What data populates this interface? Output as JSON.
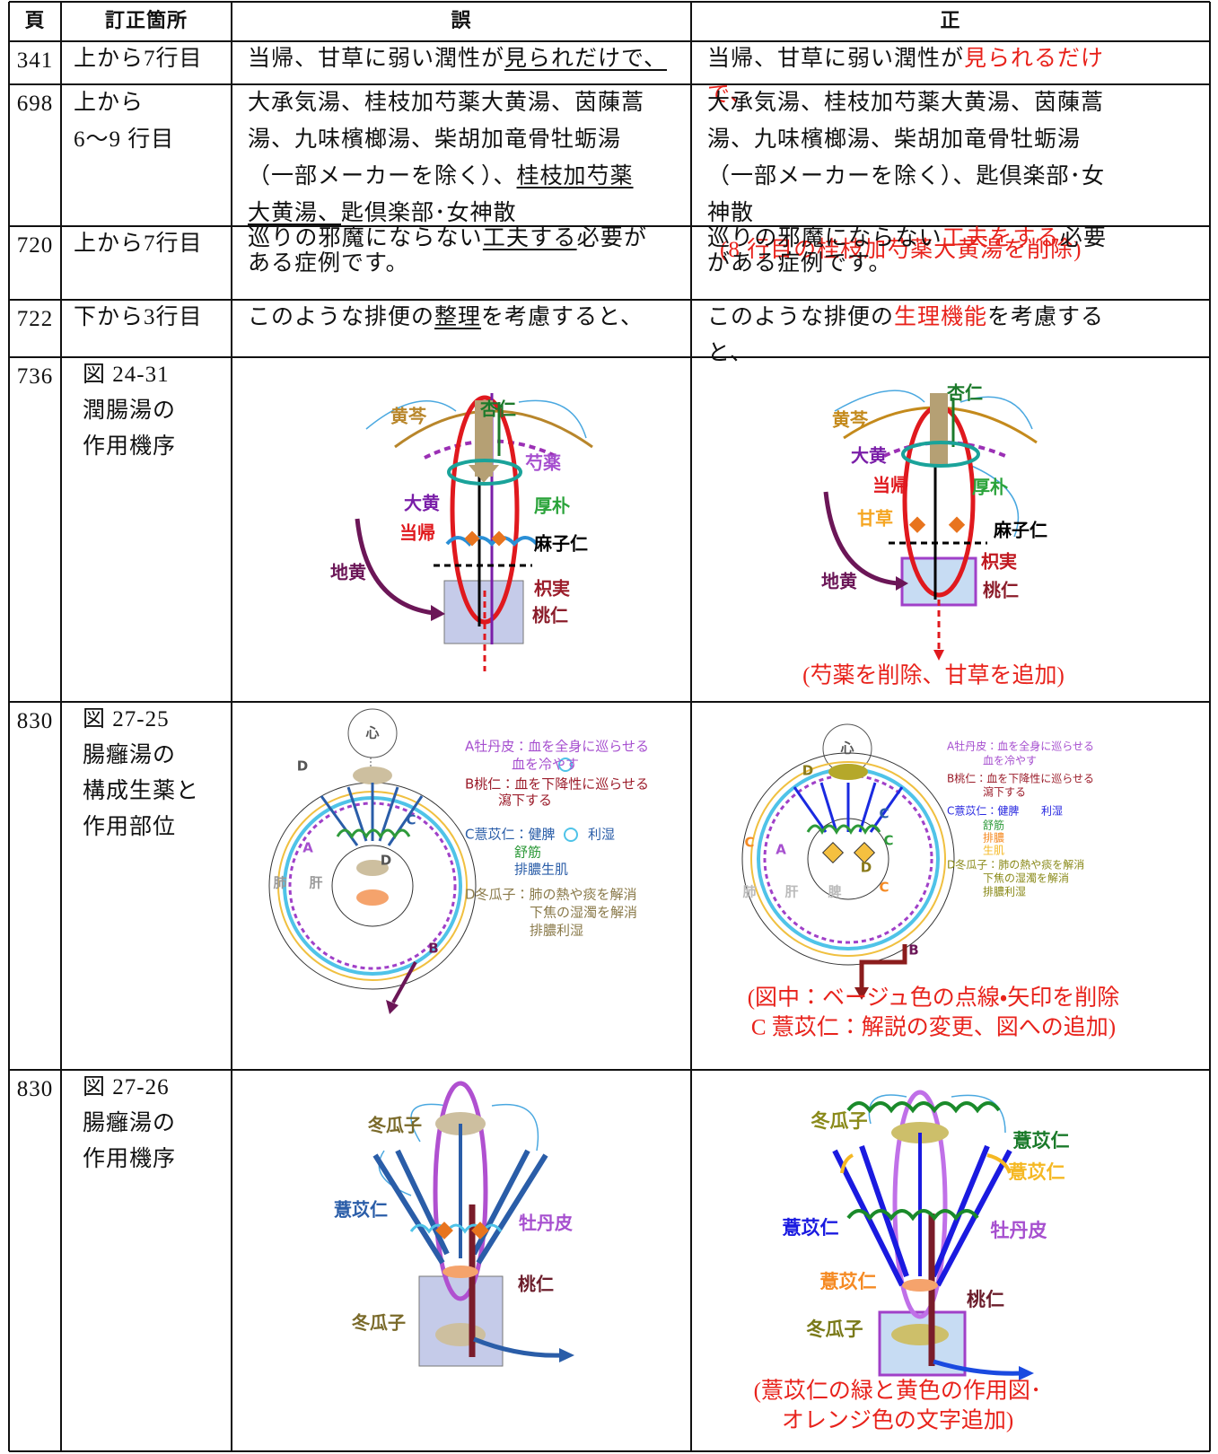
{
  "header": {
    "page": "頁",
    "location": "訂正箇所",
    "wrong": "誤",
    "right": "正"
  },
  "rows": [
    {
      "page": "341",
      "location": [
        "上から7行目"
      ],
      "wrong": [
        {
          "text": "当帰、甘草に弱い潤性が"
        },
        {
          "text": "見られだけで、",
          "underline": true
        }
      ],
      "right": [
        {
          "text": "当帰、甘草に弱い潤性が"
        },
        {
          "text": "見られるだけで、",
          "color": "red"
        }
      ]
    },
    {
      "page": "698",
      "location": [
        "上から",
        "6〜9 行目"
      ],
      "wrong": [
        {
          "text": "大承気湯、桂枝加芍薬大黄湯、茵蔯蒿湯、九味檳榔湯、柴胡加竜骨牡蛎湯（一部メーカーを除く）、"
        },
        {
          "text": "桂枝加芍薬大黄湯、",
          "underline": true
        },
        {
          "text": "匙倶楽部･女神散"
        }
      ],
      "right": [
        {
          "text": "大承気湯、桂枝加芍薬大黄湯、茵蔯蒿湯、九味檳榔湯、柴胡加竜骨牡蛎湯（一部メーカーを除く）、匙倶楽部･女神散"
        }
      ],
      "right_note": "(8 行目の桂枝加芍薬大黄湯を削除)"
    },
    {
      "page": "720",
      "location": [
        "上から7行目"
      ],
      "wrong": [
        {
          "text": "巡りの邪魔にならない"
        },
        {
          "text": "工夫する",
          "underline": true
        },
        {
          "text": "必要がある症例です。"
        }
      ],
      "right": [
        {
          "text": "巡りの邪魔にならない"
        },
        {
          "text": "工夫をする",
          "color": "red"
        },
        {
          "text": "必要がある症例です。"
        }
      ]
    },
    {
      "page": "722",
      "location": [
        "下から3行目"
      ],
      "wrong": [
        {
          "text": "このような排便の"
        },
        {
          "text": "整理",
          "underline": true
        },
        {
          "text": "を考慮すると、"
        }
      ],
      "right": [
        {
          "text": "このような排便の"
        },
        {
          "text": "生理機能",
          "color": "red"
        },
        {
          "text": "を考慮すると、"
        }
      ]
    },
    {
      "page": "736",
      "location": [
        "図 24-31",
        "潤腸湯の",
        "作用機序"
      ],
      "wrong_figure": {
        "labels": [
          "黄芩",
          "杏仁",
          "芍薬",
          "大黄",
          "厚朴",
          "当帰",
          "麻子仁",
          "地黄",
          "枳実",
          "桃仁"
        ]
      },
      "right_figure": {
        "labels": [
          "杏仁",
          "黄芩",
          "大黄",
          "当帰",
          "厚朴",
          "甘草",
          "麻子仁",
          "枳実",
          "地黄",
          "桃仁"
        ],
        "note": [
          "(芍薬を削除、甘草を追加)"
        ]
      }
    },
    {
      "page": "830",
      "location": [
        "図 27-25",
        "腸癰湯の",
        "構成生薬と",
        "作用部位"
      ],
      "wrong_figure": {
        "labels": [
          "心",
          "D",
          "C",
          "A",
          "D",
          "肺",
          "肝",
          "B"
        ],
        "legend": [
          "A牡丹皮：血を全身に巡らせる",
          "血を冷やす",
          "B桃仁：血を下降性に巡らせる",
          "瀉下する",
          "C薏苡仁：健脾",
          "利湿",
          "舒筋",
          "排膿生肌",
          "D冬瓜子：肺の熱や痰を解消",
          "下焦の湿濁を解消",
          "排膿利湿"
        ]
      },
      "right_figure": {
        "labels": [
          "心",
          "D",
          "C",
          "C",
          "A",
          "C",
          "C",
          "D",
          "肺",
          "肝",
          "脾",
          "B"
        ],
        "legend": [
          "A牡丹皮：血を全身に巡らせる",
          "血を冷やす",
          "B桃仁：血を下降性に巡らせる",
          "瀉下する",
          "C薏苡仁：健脾",
          "利湿",
          "舒筋",
          "排膿",
          "生肌",
          "D冬瓜子：肺の熱や痰を解消",
          "下焦の湿濁を解消",
          "排膿利湿"
        ],
        "note": [
          "(図中：ベージュ色の点線・矢印を削除",
          "C 薏苡仁：解説の変更、図への追加)"
        ]
      }
    },
    {
      "page": "830",
      "location": [
        "図 27-26",
        "腸癰湯の",
        "作用機序"
      ],
      "wrong_figure": {
        "labels": [
          "冬瓜子",
          "薏苡仁",
          "牡丹皮",
          "桃仁",
          "冬瓜子"
        ]
      },
      "right_figure": {
        "labels": [
          "冬瓜子",
          "薏苡仁",
          "薏苡仁",
          "薏苡仁",
          "牡丹皮",
          "薏苡仁",
          "桃仁",
          "冬瓜子"
        ],
        "note": [
          "(薏苡仁の緑と黄色の作用図･",
          "オレンジ色の文字追加)"
        ]
      }
    }
  ]
}
